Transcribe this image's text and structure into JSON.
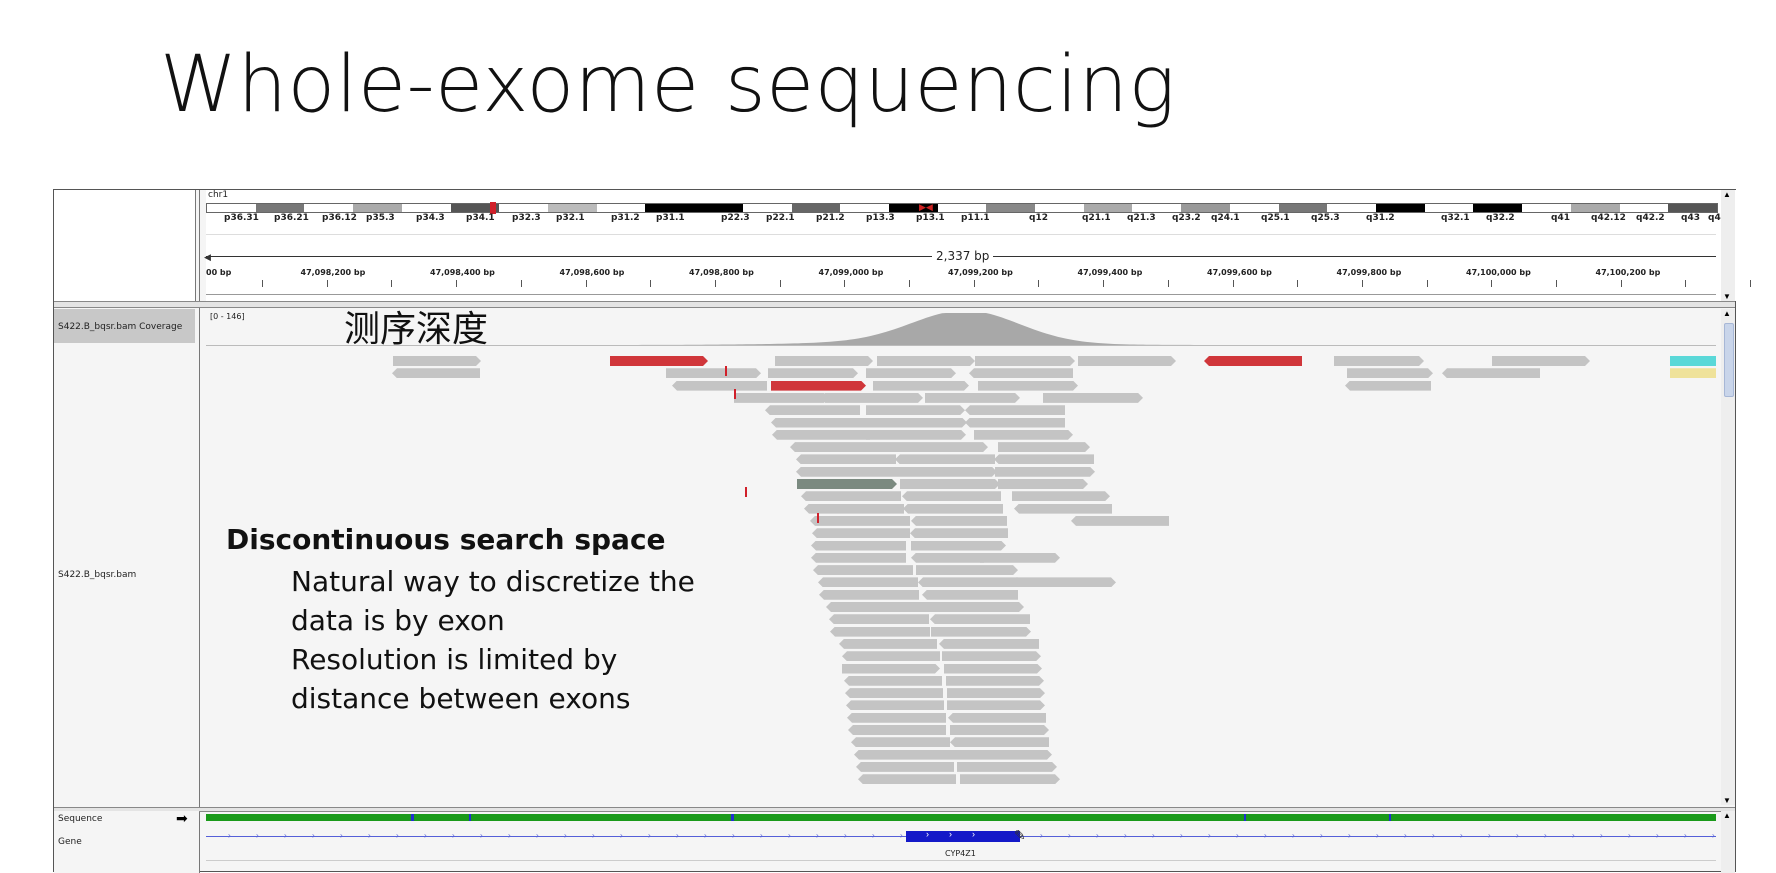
{
  "slide": {
    "title": "Whole-exome sequencing"
  },
  "igv": {
    "chromosome": "chr1",
    "ideogram_bands": [
      "p36.31",
      "p36.21",
      "p36.12",
      "p35.3",
      "p34.3",
      "p34.1",
      "p32.3",
      "p32.1",
      "p31.2",
      "p31.1",
      "p22.3",
      "p22.1",
      "p21.2",
      "p13.3",
      "p13.1",
      "p11.1",
      "q12",
      "q21.1",
      "q21.3",
      "q23.2",
      "q24.1",
      "q25.1",
      "q25.3",
      "q31.2",
      "q32.1",
      "q32.2",
      "q41",
      "q42.12",
      "q42.2",
      "q43",
      "q44"
    ],
    "span_label": "2,337 bp",
    "ruler_ticks": [
      "00 bp",
      "47,098,200 bp",
      "47,098,400 bp",
      "47,098,600 bp",
      "47,098,800 bp",
      "47,099,000 bp",
      "47,099,200 bp",
      "47,099,400 bp",
      "47,099,600 bp",
      "47,099,800 bp",
      "47,100,000 bp",
      "47,100,200 bp"
    ],
    "coverage_track_name": "S422.B_bqsr.bam Coverage",
    "coverage_range": "[0 - 146]",
    "alignment_track_name": "S422.B_bqsr.bam",
    "sequence_track_name": "Sequence",
    "gene_track_name": "Gene",
    "gene_name": "CYP4Z1",
    "arrow_glyph": "➡"
  },
  "annotations": {
    "depth_label": "测序深度",
    "heading": "Discontinuous search space",
    "lines": [
      "Natural way to discretize the",
      "data is by exon",
      "Resolution is limited by",
      "distance between exons"
    ]
  }
}
